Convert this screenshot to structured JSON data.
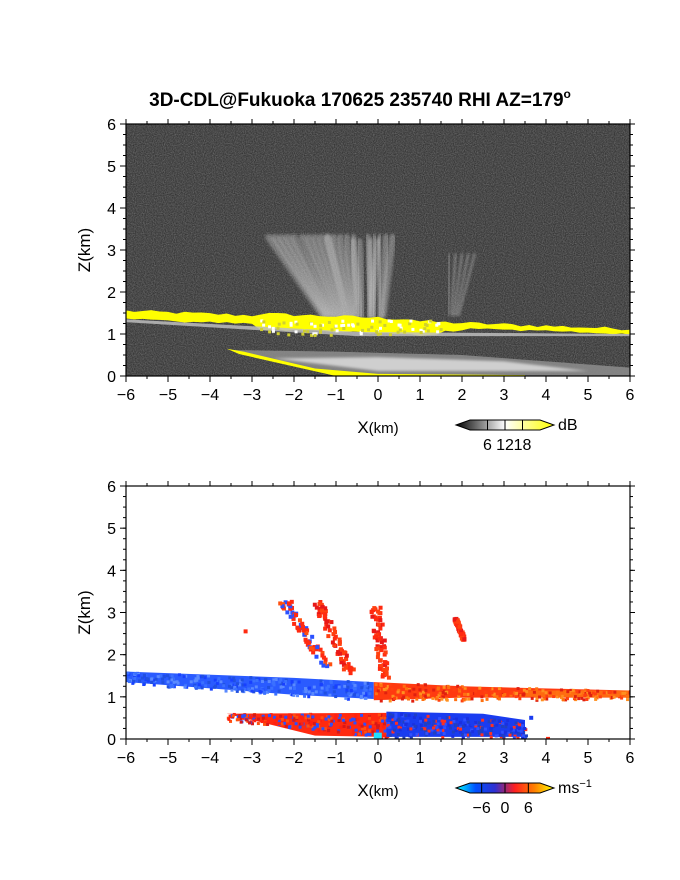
{
  "figure": {
    "title": "3D-CDL@Fukuoka 170625 235740 RHI AZ=179",
    "title_superscript": "o"
  },
  "chart_data": [
    {
      "type": "heatmap",
      "quantity": "backscatter intensity",
      "xlabel": "X",
      "xlabel_unit": "(km)",
      "ylabel": "Z(km)",
      "xlim": [
        -6,
        6
      ],
      "ylim": [
        0,
        6
      ],
      "xticks": [
        -6,
        -5,
        -4,
        -3,
        -2,
        -1,
        0,
        1,
        2,
        3,
        4,
        5,
        6
      ],
      "yticks": [
        0,
        1,
        2,
        3,
        4,
        5,
        6
      ],
      "colorbar": {
        "unit": "dB",
        "ticks": [
          "6",
          "12",
          "18"
        ],
        "range": [
          0,
          24
        ],
        "colors": [
          "#000000",
          "#ffffff",
          "#ffff00"
        ]
      },
      "background": "#262626",
      "features": {
        "upper_layer": {
          "x_range": [
            -6,
            6
          ],
          "z_top_left": 1.55,
          "z_top_right": 1.12,
          "level": "high",
          "color": "#ffff00"
        },
        "lower_layer": {
          "x_range": [
            -3.5,
            6
          ],
          "z_range": [
            0.0,
            0.65
          ],
          "level": "mid"
        },
        "plumes": [
          {
            "x_base": -1.2,
            "x_top": -2.3,
            "z_top": 3.3
          },
          {
            "x_base": -0.9,
            "x_top": -1.5,
            "z_top": 3.3
          },
          {
            "x_base": -0.6,
            "x_top": -0.9,
            "z_top": 3.3
          },
          {
            "x_base": -0.3,
            "x_top": -0.3,
            "z_top": 3.2
          },
          {
            "x_base": 0.0,
            "x_top": 0.05,
            "z_top": 3.3
          },
          {
            "x_base": 1.8,
            "x_top": 2.0,
            "z_top": 2.9
          }
        ]
      }
    },
    {
      "type": "heatmap",
      "quantity": "radial velocity",
      "xlabel": "X",
      "xlabel_unit": "(km)",
      "ylabel": "Z(km)",
      "xlim": [
        -6,
        6
      ],
      "ylim": [
        0,
        6
      ],
      "xticks": [
        -6,
        -5,
        -4,
        -3,
        -2,
        -1,
        0,
        1,
        2,
        3,
        4,
        5,
        6
      ],
      "yticks": [
        0,
        1,
        2,
        3,
        4,
        5,
        6
      ],
      "colorbar": {
        "unit": "ms",
        "unit_superscript": "−1",
        "ticks": [
          "−6",
          "0",
          "6"
        ],
        "range": [
          -9,
          9
        ],
        "colors": [
          "#00ffff",
          "#0050ff",
          "#3030d0",
          "#ff2020",
          "#ff8000",
          "#ffff00"
        ]
      },
      "features": {
        "upper_layer_negative": {
          "x_range": [
            -6,
            -0.1
          ],
          "z_range": [
            1.0,
            1.6
          ],
          "sign": "negative",
          "color": "#2a5bff"
        },
        "upper_layer_positive": {
          "x_range": [
            -0.1,
            6
          ],
          "z_range": [
            0.95,
            1.3
          ],
          "sign": "positive",
          "color": "#ff3a10"
        },
        "lower_layer_positive": {
          "x_range": [
            -3.6,
            0.2
          ],
          "z_range": [
            0.05,
            0.6
          ],
          "sign": "positive",
          "color": "#ff2a10"
        },
        "lower_layer_negative": {
          "x_range": [
            0.2,
            3.5
          ],
          "z_range": [
            0.05,
            0.65
          ],
          "sign": "negative",
          "color": "#1a3cf0"
        },
        "plumes": [
          {
            "x_range": [
              -2.3,
              -1.2
            ],
            "z_range": [
              1.7,
              3.3
            ],
            "sign": "mixed"
          },
          {
            "x_range": [
              -1.5,
              -0.7
            ],
            "z_range": [
              1.6,
              3.3
            ],
            "sign": "positive"
          },
          {
            "x_range": [
              -0.1,
              0.1
            ],
            "z_range": [
              1.5,
              3.2
            ],
            "sign": "positive"
          },
          {
            "x_range": [
              1.8,
              2.0
            ],
            "z_range": [
              2.4,
              2.9
            ],
            "sign": "positive"
          }
        ]
      }
    }
  ]
}
